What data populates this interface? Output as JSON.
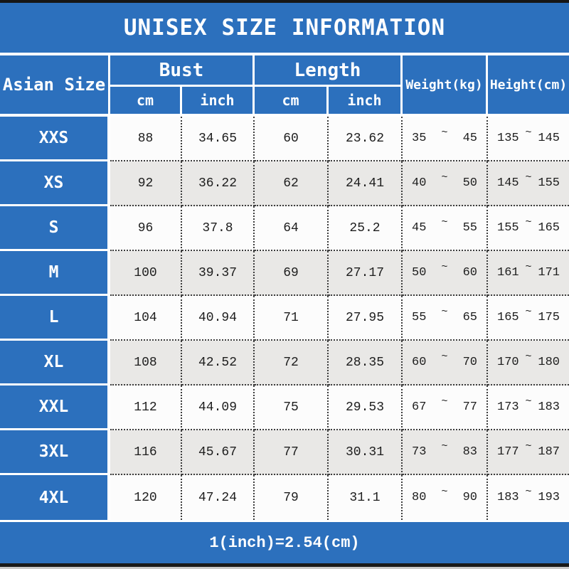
{
  "title": "UNISEX SIZE INFORMATION",
  "footer_note": "1(inch)=2.54(cm)",
  "colors": {
    "primary_blue": "#2c70bd",
    "alt_row_gray": "#e9e8e6",
    "row_white": "#fcfcfc",
    "bar_black": "#161616",
    "header_text": "#ffffff",
    "data_text": "#1d1d1d"
  },
  "header": {
    "asian_size": "Asian Size",
    "bust": "Bust",
    "length": "Length",
    "weight": "Weight(kg)",
    "height": "Height(cm)",
    "unit_cm": "cm",
    "unit_inch": "inch",
    "range_separator": "~"
  },
  "chart_data": {
    "type": "table",
    "title": "UNISEX SIZE INFORMATION",
    "columns": [
      "Asian Size",
      "Bust cm",
      "Bust inch",
      "Length cm",
      "Length inch",
      "Weight(kg)",
      "Height(cm)"
    ],
    "rows": [
      {
        "size": "XXS",
        "bust_cm": "88",
        "bust_inch": "34.65",
        "length_cm": "60",
        "length_inch": "23.62",
        "weight_kg_min": "35",
        "weight_kg_max": "45",
        "height_cm_min": "135",
        "height_cm_max": "145"
      },
      {
        "size": "XS",
        "bust_cm": "92",
        "bust_inch": "36.22",
        "length_cm": "62",
        "length_inch": "24.41",
        "weight_kg_min": "40",
        "weight_kg_max": "50",
        "height_cm_min": "145",
        "height_cm_max": "155"
      },
      {
        "size": "S",
        "bust_cm": "96",
        "bust_inch": "37.8",
        "length_cm": "64",
        "length_inch": "25.2",
        "weight_kg_min": "45",
        "weight_kg_max": "55",
        "height_cm_min": "155",
        "height_cm_max": "165"
      },
      {
        "size": "M",
        "bust_cm": "100",
        "bust_inch": "39.37",
        "length_cm": "69",
        "length_inch": "27.17",
        "weight_kg_min": "50",
        "weight_kg_max": "60",
        "height_cm_min": "161",
        "height_cm_max": "171"
      },
      {
        "size": "L",
        "bust_cm": "104",
        "bust_inch": "40.94",
        "length_cm": "71",
        "length_inch": "27.95",
        "weight_kg_min": "55",
        "weight_kg_max": "65",
        "height_cm_min": "165",
        "height_cm_max": "175"
      },
      {
        "size": "XL",
        "bust_cm": "108",
        "bust_inch": "42.52",
        "length_cm": "72",
        "length_inch": "28.35",
        "weight_kg_min": "60",
        "weight_kg_max": "70",
        "height_cm_min": "170",
        "height_cm_max": "180"
      },
      {
        "size": "XXL",
        "bust_cm": "112",
        "bust_inch": "44.09",
        "length_cm": "75",
        "length_inch": "29.53",
        "weight_kg_min": "67",
        "weight_kg_max": "77",
        "height_cm_min": "173",
        "height_cm_max": "183"
      },
      {
        "size": "3XL",
        "bust_cm": "116",
        "bust_inch": "45.67",
        "length_cm": "77",
        "length_inch": "30.31",
        "weight_kg_min": "73",
        "weight_kg_max": "83",
        "height_cm_min": "177",
        "height_cm_max": "187"
      },
      {
        "size": "4XL",
        "bust_cm": "120",
        "bust_inch": "47.24",
        "length_cm": "79",
        "length_inch": "31.1",
        "weight_kg_min": "80",
        "weight_kg_max": "90",
        "height_cm_min": "183",
        "height_cm_max": "193"
      }
    ],
    "note": "1(inch)=2.54(cm)",
    "layout": {
      "grid": "dotted-inner-borders",
      "legend": "none",
      "alternating_rows": true
    }
  }
}
